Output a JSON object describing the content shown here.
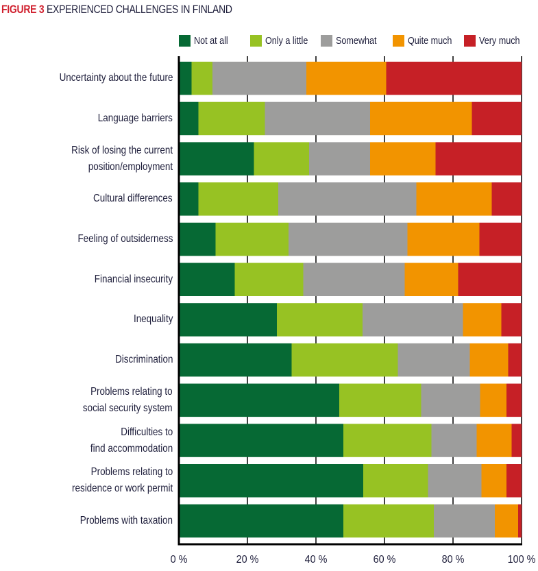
{
  "chart_data": {
    "type": "bar",
    "orientation": "horizontal",
    "stacked": true,
    "title_prefix": "FIGURE 3",
    "title": "EXPERIENCED CHALLENGES IN FINLAND",
    "xlabel": "",
    "ylabel": "",
    "xlim": [
      0,
      100
    ],
    "x_ticks": [
      "0 %",
      "20 %",
      "40 %",
      "60 %",
      "80 %",
      "100 %"
    ],
    "x_tick_values": [
      0,
      20,
      40,
      60,
      80,
      100
    ],
    "legend_position": "top",
    "grid": false,
    "categories": [
      "Uncertainty about the future",
      "Language barriers",
      "Risk of losing the current\nposition/employment",
      "Cultural differences",
      "Feeling of outsiderness",
      "Financial insecurity",
      "Inequality",
      "Discrimination",
      "Problems relating to\nsocial security system",
      "Difficulties to\nfind accommodation",
      "Problems relating to\nresidence or work permit",
      "Problems with taxation"
    ],
    "series": [
      {
        "name": "Not at all",
        "color": "#066934",
        "values": [
          3.7,
          5.7,
          21.9,
          5.7,
          10.7,
          16.3,
          28.6,
          32.9,
          46.8,
          48.0,
          53.8,
          48.0
        ]
      },
      {
        "name": "Only a little",
        "color": "#97c223",
        "values": [
          6.1,
          19.4,
          16.1,
          23.3,
          21.3,
          20.0,
          25.0,
          31.0,
          23.9,
          25.7,
          18.9,
          26.4
        ]
      },
      {
        "name": "Somewhat",
        "color": "#9d9d9c",
        "values": [
          27.4,
          30.7,
          17.8,
          40.3,
          34.7,
          29.6,
          29.3,
          21.0,
          17.2,
          13.2,
          15.6,
          17.8
        ]
      },
      {
        "name": "Quite much",
        "color": "#f29400",
        "values": [
          23.3,
          29.7,
          19.1,
          22.0,
          21.0,
          15.6,
          11.2,
          11.2,
          7.7,
          10.2,
          7.3,
          6.8
        ]
      },
      {
        "name": "Very much",
        "color": "#c62026",
        "values": [
          39.5,
          14.5,
          25.1,
          8.7,
          12.3,
          18.5,
          5.9,
          3.9,
          4.4,
          2.9,
          4.4,
          1.0
        ]
      }
    ]
  }
}
